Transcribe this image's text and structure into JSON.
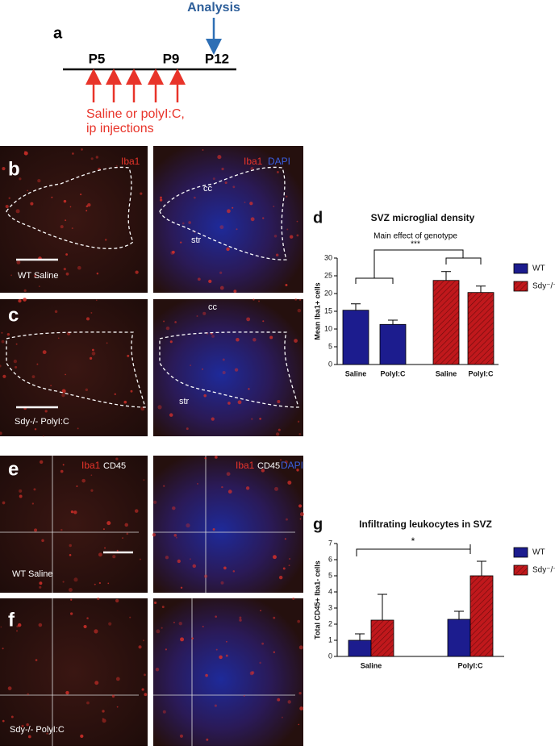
{
  "timeline": {
    "label": "a",
    "analysis": "Analysis",
    "days": [
      "P5",
      "P9",
      "P12"
    ],
    "treatment": [
      "Saline or polyI:C,",
      "ip injections"
    ]
  },
  "micrographs": {
    "labels": [
      "b",
      "c",
      "e",
      "f"
    ],
    "stain_red": "Iba1",
    "stain_blue": "DAPI",
    "stain_white": "CD45",
    "regions": [
      "cc",
      "str"
    ],
    "conditions": [
      "WT Saline",
      "Sdy-/- PolyI:C"
    ]
  },
  "chart_data": [
    {
      "type": "bar",
      "label": "d",
      "title": "SVZ microglial density",
      "annotation": "Main effect of genotype",
      "significance": "***",
      "y_label": "Mean Iba1+ cells",
      "categories": [
        "Saline",
        "PolyI:C",
        "Saline",
        "PolyI:C"
      ],
      "series": [
        {
          "name": "WT",
          "color": "#1c1c8e",
          "hatch": false,
          "values": [
            15.3,
            11.3,
            null,
            null
          ],
          "errors": [
            1.8,
            1.2,
            null,
            null
          ]
        },
        {
          "name": "Sdy⁻/⁻",
          "color": "#c0181c",
          "hatch": true,
          "values": [
            null,
            null,
            23.7,
            20.3
          ],
          "errors": [
            null,
            null,
            2.5,
            1.8
          ]
        }
      ],
      "ylim": [
        0,
        30
      ],
      "yticks": [
        0,
        5,
        10,
        15,
        20,
        25,
        30
      ]
    },
    {
      "type": "bar",
      "label": "g",
      "title": "Infiltrating leukocytes in SVZ",
      "significance": "*",
      "y_label": "Total CD45+ Iba1- cells",
      "categories": [
        "Saline",
        "PolyI:C"
      ],
      "series": [
        {
          "name": "WT",
          "color": "#1c1c8e",
          "hatch": false,
          "values": [
            1.0,
            2.3
          ],
          "errors": [
            0.4,
            0.5
          ]
        },
        {
          "name": "Sdy⁻/⁻",
          "color": "#c0181c",
          "hatch": true,
          "values": [
            2.25,
            5.0
          ],
          "errors": [
            1.6,
            0.9
          ]
        }
      ],
      "ylim": [
        0,
        7
      ],
      "yticks": [
        0,
        1,
        2,
        3,
        4,
        5,
        6,
        7
      ]
    }
  ]
}
